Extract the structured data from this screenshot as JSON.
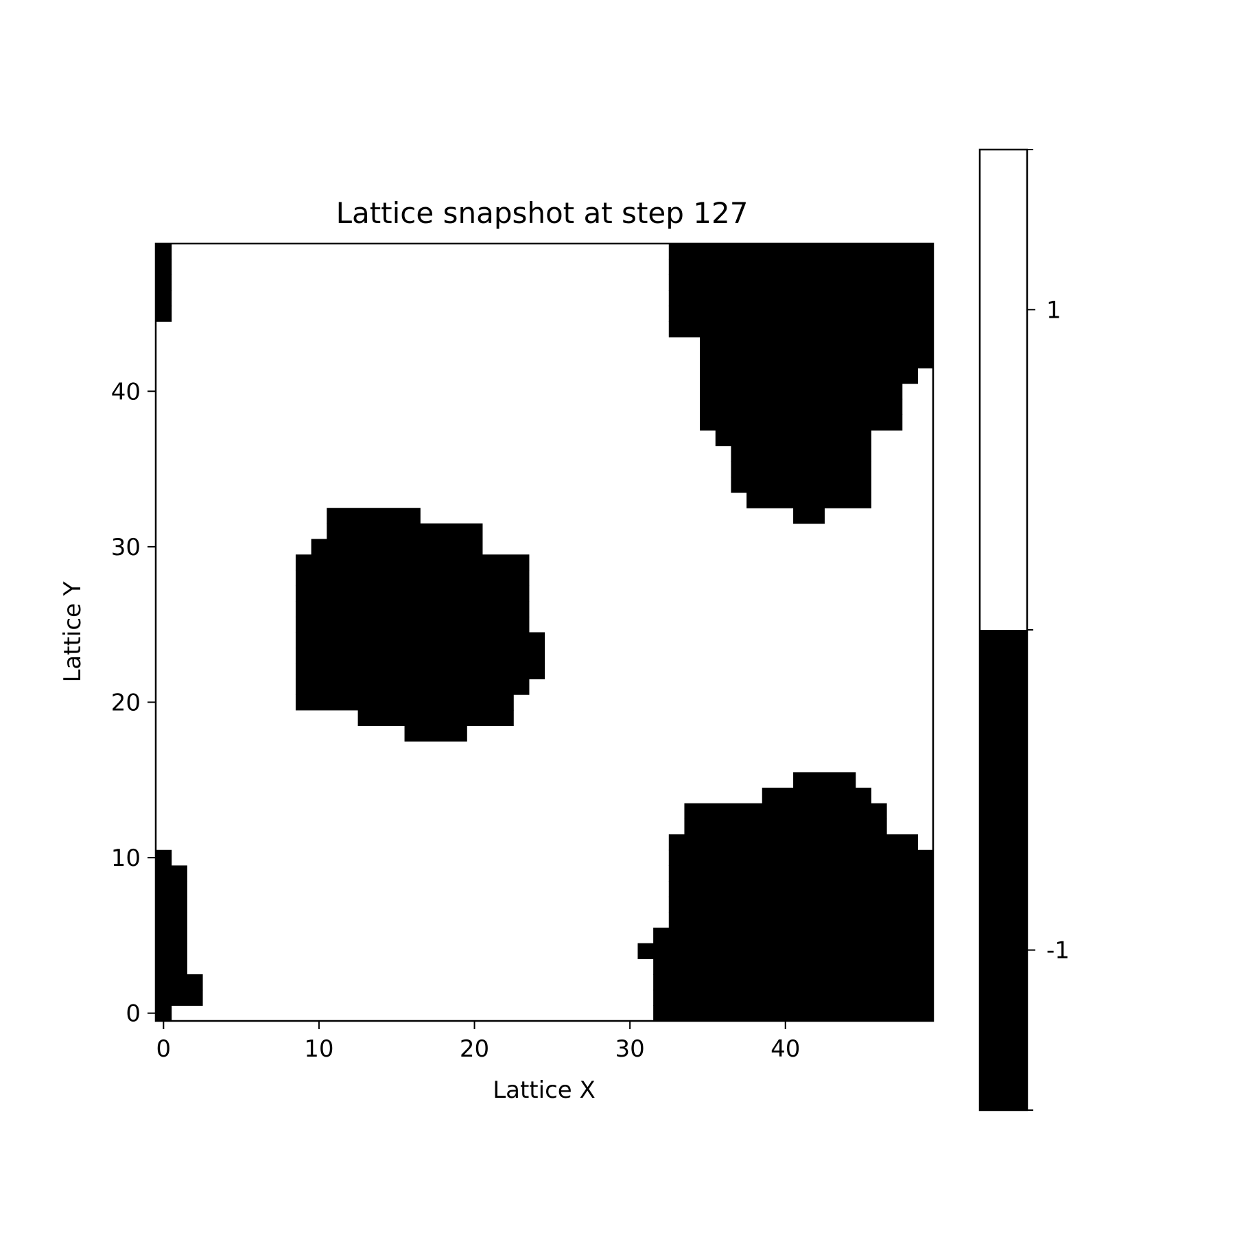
{
  "chart_data": {
    "type": "heatmap",
    "title": "Lattice snapshot at step 127",
    "xlabel": "Lattice X",
    "ylabel": "Lattice Y",
    "grid_size": [
      50,
      50
    ],
    "xlim": [
      -0.5,
      49.5
    ],
    "ylim": [
      -0.5,
      49.5
    ],
    "origin": "lower",
    "grid": false,
    "x_ticks": [
      0,
      10,
      20,
      30,
      40
    ],
    "y_ticks": [
      0,
      10,
      20,
      30,
      40
    ],
    "colormap": [
      {
        "value": -1,
        "color": "#000000"
      },
      {
        "value": 1,
        "color": "#ffffff"
      }
    ],
    "colorbar": {
      "placement": "right",
      "ticks": [
        1,
        -1
      ],
      "range": [
        -1.5,
        1.5
      ]
    },
    "cell_encoding": "each row lists [x_start, x_end] runs of cells with value -1; all other cells are 1",
    "rows": [
      {
        "y": 0,
        "runs": [
          [
            0,
            0
          ],
          [
            32,
            49
          ]
        ]
      },
      {
        "y": 1,
        "runs": [
          [
            0,
            2
          ],
          [
            32,
            49
          ]
        ]
      },
      {
        "y": 2,
        "runs": [
          [
            0,
            2
          ],
          [
            32,
            49
          ]
        ]
      },
      {
        "y": 3,
        "runs": [
          [
            0,
            1
          ],
          [
            32,
            49
          ]
        ]
      },
      {
        "y": 4,
        "runs": [
          [
            0,
            1
          ],
          [
            31,
            49
          ]
        ]
      },
      {
        "y": 5,
        "runs": [
          [
            0,
            1
          ],
          [
            32,
            49
          ]
        ]
      },
      {
        "y": 6,
        "runs": [
          [
            0,
            1
          ],
          [
            33,
            49
          ]
        ]
      },
      {
        "y": 7,
        "runs": [
          [
            0,
            1
          ],
          [
            33,
            49
          ]
        ]
      },
      {
        "y": 8,
        "runs": [
          [
            0,
            1
          ],
          [
            33,
            49
          ]
        ]
      },
      {
        "y": 9,
        "runs": [
          [
            0,
            1
          ],
          [
            33,
            49
          ]
        ]
      },
      {
        "y": 10,
        "runs": [
          [
            0,
            0
          ],
          [
            33,
            49
          ]
        ]
      },
      {
        "y": 11,
        "runs": [
          [
            33,
            48
          ]
        ]
      },
      {
        "y": 12,
        "runs": [
          [
            34,
            46
          ]
        ]
      },
      {
        "y": 13,
        "runs": [
          [
            34,
            46
          ]
        ]
      },
      {
        "y": 14,
        "runs": [
          [
            39,
            45
          ]
        ]
      },
      {
        "y": 15,
        "runs": [
          [
            41,
            44
          ]
        ]
      },
      {
        "y": 18,
        "runs": [
          [
            16,
            19
          ]
        ]
      },
      {
        "y": 19,
        "runs": [
          [
            13,
            22
          ]
        ]
      },
      {
        "y": 20,
        "runs": [
          [
            9,
            22
          ]
        ]
      },
      {
        "y": 21,
        "runs": [
          [
            9,
            23
          ]
        ]
      },
      {
        "y": 22,
        "runs": [
          [
            9,
            24
          ]
        ]
      },
      {
        "y": 23,
        "runs": [
          [
            9,
            24
          ]
        ]
      },
      {
        "y": 24,
        "runs": [
          [
            9,
            24
          ]
        ]
      },
      {
        "y": 25,
        "runs": [
          [
            9,
            23
          ]
        ]
      },
      {
        "y": 26,
        "runs": [
          [
            9,
            23
          ]
        ]
      },
      {
        "y": 27,
        "runs": [
          [
            9,
            23
          ]
        ]
      },
      {
        "y": 28,
        "runs": [
          [
            9,
            23
          ]
        ]
      },
      {
        "y": 29,
        "runs": [
          [
            9,
            23
          ]
        ]
      },
      {
        "y": 30,
        "runs": [
          [
            10,
            20
          ]
        ]
      },
      {
        "y": 31,
        "runs": [
          [
            11,
            20
          ]
        ]
      },
      {
        "y": 32,
        "runs": [
          [
            11,
            16
          ],
          [
            41,
            42
          ]
        ]
      },
      {
        "y": 33,
        "runs": [
          [
            38,
            45
          ]
        ]
      },
      {
        "y": 34,
        "runs": [
          [
            37,
            45
          ]
        ]
      },
      {
        "y": 35,
        "runs": [
          [
            37,
            45
          ]
        ]
      },
      {
        "y": 36,
        "runs": [
          [
            37,
            45
          ]
        ]
      },
      {
        "y": 37,
        "runs": [
          [
            36,
            45
          ]
        ]
      },
      {
        "y": 38,
        "runs": [
          [
            35,
            47
          ]
        ]
      },
      {
        "y": 39,
        "runs": [
          [
            35,
            47
          ]
        ]
      },
      {
        "y": 40,
        "runs": [
          [
            35,
            47
          ]
        ]
      },
      {
        "y": 41,
        "runs": [
          [
            35,
            48
          ]
        ]
      },
      {
        "y": 42,
        "runs": [
          [
            35,
            49
          ]
        ]
      },
      {
        "y": 43,
        "runs": [
          [
            35,
            49
          ]
        ]
      },
      {
        "y": 44,
        "runs": [
          [
            33,
            49
          ]
        ]
      },
      {
        "y": 45,
        "runs": [
          [
            0,
            0
          ],
          [
            33,
            49
          ]
        ]
      },
      {
        "y": 46,
        "runs": [
          [
            0,
            0
          ],
          [
            33,
            49
          ]
        ]
      },
      {
        "y": 47,
        "runs": [
          [
            0,
            0
          ],
          [
            33,
            49
          ]
        ]
      },
      {
        "y": 48,
        "runs": [
          [
            0,
            0
          ],
          [
            33,
            49
          ]
        ]
      },
      {
        "y": 49,
        "runs": [
          [
            0,
            0
          ],
          [
            33,
            49
          ]
        ]
      }
    ]
  }
}
